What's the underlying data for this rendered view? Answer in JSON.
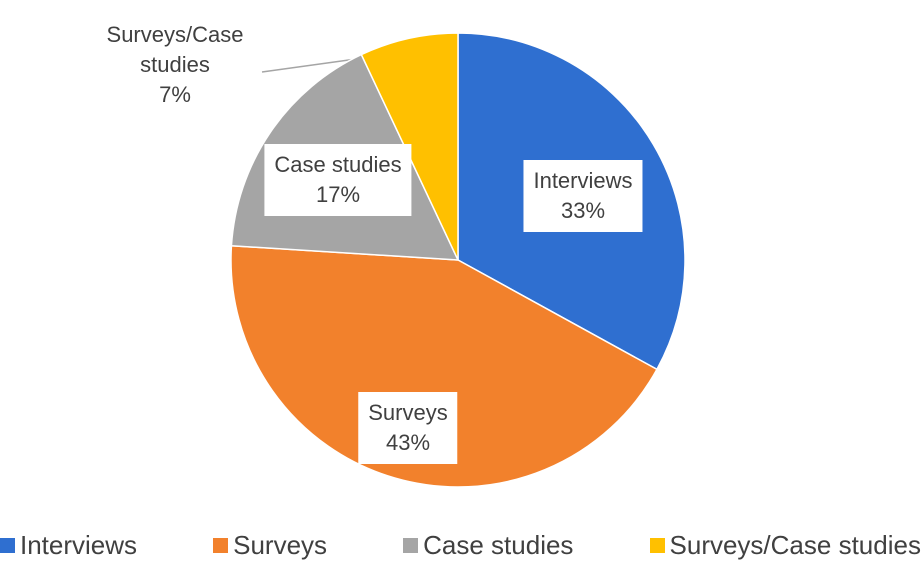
{
  "chart_data": {
    "type": "pie",
    "categories": [
      "Interviews",
      "Surveys",
      "Case studies",
      "Surveys/Case studies"
    ],
    "values": [
      33,
      43,
      17,
      7
    ],
    "value_labels": [
      "33%",
      "43%",
      "17%",
      "7%"
    ],
    "colors": [
      "#2f6fd0",
      "#f2812c",
      "#a5a5a5",
      "#ffc000"
    ],
    "legend": "bottom"
  }
}
